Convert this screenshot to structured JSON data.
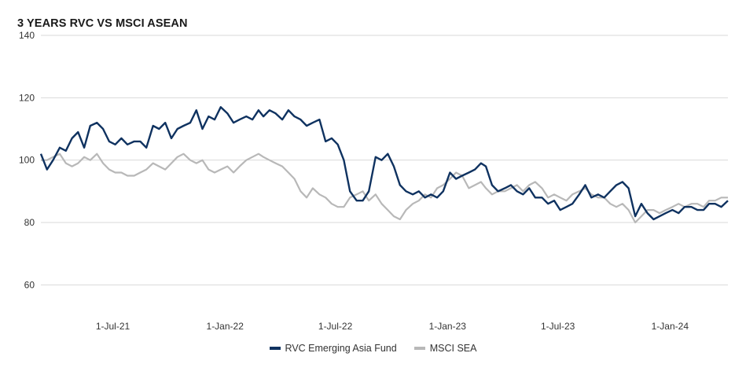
{
  "chart_data": {
    "type": "line",
    "title": "3 YEARS RVC VS MSCI ASEAN",
    "xlabel": "",
    "ylabel": "",
    "ylim": [
      50,
      140
    ],
    "yticks": [
      60,
      80,
      100,
      120,
      140
    ],
    "xlim": [
      "2021-03-05",
      "2024-04-05"
    ],
    "xticks": [
      "2021-07-01",
      "2022-01-01",
      "2022-07-01",
      "2023-01-01",
      "2023-07-01",
      "2024-01-01"
    ],
    "xtick_labels": [
      "1-Jul-21",
      "1-Jan-22",
      "1-Jul-22",
      "1-Jan-23",
      "1-Jul-23",
      "1-Jan-24"
    ],
    "grid": "horizontal",
    "legend_position": "bottom",
    "series": [
      {
        "name": "RVC Emerging Asia Fund",
        "color": "#0f3260",
        "x": [
          "2021-03-05",
          "2021-03-15",
          "2021-03-25",
          "2021-04-05",
          "2021-04-15",
          "2021-04-25",
          "2021-05-05",
          "2021-05-15",
          "2021-05-25",
          "2021-06-05",
          "2021-06-15",
          "2021-06-25",
          "2021-07-05",
          "2021-07-15",
          "2021-07-25",
          "2021-08-05",
          "2021-08-15",
          "2021-08-25",
          "2021-09-05",
          "2021-09-15",
          "2021-09-25",
          "2021-10-05",
          "2021-10-15",
          "2021-10-25",
          "2021-11-05",
          "2021-11-15",
          "2021-11-25",
          "2021-12-05",
          "2021-12-15",
          "2021-12-25",
          "2022-01-05",
          "2022-01-15",
          "2022-01-25",
          "2022-02-05",
          "2022-02-15",
          "2022-02-25",
          "2022-03-05",
          "2022-03-15",
          "2022-03-25",
          "2022-04-05",
          "2022-04-15",
          "2022-04-25",
          "2022-05-05",
          "2022-05-15",
          "2022-05-25",
          "2022-06-05",
          "2022-06-15",
          "2022-06-25",
          "2022-07-05",
          "2022-07-15",
          "2022-07-25",
          "2022-08-05",
          "2022-08-15",
          "2022-08-25",
          "2022-09-05",
          "2022-09-15",
          "2022-09-25",
          "2022-10-05",
          "2022-10-15",
          "2022-10-25",
          "2022-11-05",
          "2022-11-15",
          "2022-11-25",
          "2022-12-05",
          "2022-12-15",
          "2022-12-25",
          "2023-01-05",
          "2023-01-15",
          "2023-01-25",
          "2023-02-05",
          "2023-02-15",
          "2023-02-25",
          "2023-03-05",
          "2023-03-15",
          "2023-03-25",
          "2023-04-05",
          "2023-04-15",
          "2023-04-25",
          "2023-05-05",
          "2023-05-15",
          "2023-05-25",
          "2023-06-05",
          "2023-06-15",
          "2023-06-25",
          "2023-07-05",
          "2023-07-15",
          "2023-07-25",
          "2023-08-05",
          "2023-08-15",
          "2023-08-25",
          "2023-09-05",
          "2023-09-15",
          "2023-09-25",
          "2023-10-05",
          "2023-10-15",
          "2023-10-25",
          "2023-11-05",
          "2023-11-15",
          "2023-11-25",
          "2023-12-05",
          "2023-12-15",
          "2023-12-25",
          "2024-01-05",
          "2024-01-15",
          "2024-01-25",
          "2024-02-05",
          "2024-02-15",
          "2024-02-25",
          "2024-03-05",
          "2024-03-15",
          "2024-03-25",
          "2024-04-05"
        ],
        "values": [
          102,
          97,
          100,
          104,
          103,
          107,
          109,
          104,
          111,
          112,
          110,
          106,
          105,
          107,
          105,
          106,
          106,
          104,
          111,
          110,
          112,
          107,
          110,
          111,
          112,
          116,
          110,
          114,
          113,
          117,
          115,
          112,
          113,
          114,
          113,
          116,
          114,
          116,
          115,
          113,
          116,
          114,
          113,
          111,
          112,
          113,
          106,
          107,
          105,
          100,
          90,
          87,
          87,
          90,
          101,
          100,
          102,
          98,
          92,
          90,
          89,
          90,
          88,
          89,
          88,
          90,
          96,
          94,
          95,
          96,
          97,
          99,
          98,
          92,
          90,
          91,
          92,
          90,
          89,
          91,
          88,
          88,
          86,
          87,
          84,
          85,
          86,
          89,
          92,
          88,
          89,
          88,
          90,
          92,
          93,
          91,
          82,
          86,
          83,
          81,
          82,
          83,
          84,
          83,
          85,
          85,
          84,
          84,
          86,
          86,
          85,
          87
        ]
      },
      {
        "name": "MSCI SEA",
        "color": "#b8b8b8",
        "x": [
          "2021-03-05",
          "2021-03-15",
          "2021-03-25",
          "2021-04-05",
          "2021-04-15",
          "2021-04-25",
          "2021-05-05",
          "2021-05-15",
          "2021-05-25",
          "2021-06-05",
          "2021-06-15",
          "2021-06-25",
          "2021-07-05",
          "2021-07-15",
          "2021-07-25",
          "2021-08-05",
          "2021-08-15",
          "2021-08-25",
          "2021-09-05",
          "2021-09-15",
          "2021-09-25",
          "2021-10-05",
          "2021-10-15",
          "2021-10-25",
          "2021-11-05",
          "2021-11-15",
          "2021-11-25",
          "2021-12-05",
          "2021-12-15",
          "2021-12-25",
          "2022-01-05",
          "2022-01-15",
          "2022-01-25",
          "2022-02-05",
          "2022-02-15",
          "2022-02-25",
          "2022-03-05",
          "2022-03-15",
          "2022-03-25",
          "2022-04-05",
          "2022-04-15",
          "2022-04-25",
          "2022-05-05",
          "2022-05-15",
          "2022-05-25",
          "2022-06-05",
          "2022-06-15",
          "2022-06-25",
          "2022-07-05",
          "2022-07-15",
          "2022-07-25",
          "2022-08-05",
          "2022-08-15",
          "2022-08-25",
          "2022-09-05",
          "2022-09-15",
          "2022-09-25",
          "2022-10-05",
          "2022-10-15",
          "2022-10-25",
          "2022-11-05",
          "2022-11-15",
          "2022-11-25",
          "2022-12-05",
          "2022-12-15",
          "2022-12-25",
          "2023-01-05",
          "2023-01-15",
          "2023-01-25",
          "2023-02-05",
          "2023-02-15",
          "2023-02-25",
          "2023-03-05",
          "2023-03-15",
          "2023-03-25",
          "2023-04-05",
          "2023-04-15",
          "2023-04-25",
          "2023-05-05",
          "2023-05-15",
          "2023-05-25",
          "2023-06-05",
          "2023-06-15",
          "2023-06-25",
          "2023-07-05",
          "2023-07-15",
          "2023-07-25",
          "2023-08-05",
          "2023-08-15",
          "2023-08-25",
          "2023-09-05",
          "2023-09-15",
          "2023-09-25",
          "2023-10-05",
          "2023-10-15",
          "2023-10-25",
          "2023-11-05",
          "2023-11-15",
          "2023-11-25",
          "2023-12-05",
          "2023-12-15",
          "2023-12-25",
          "2024-01-05",
          "2024-01-15",
          "2024-01-25",
          "2024-02-05",
          "2024-02-15",
          "2024-02-25",
          "2024-03-05",
          "2024-03-15",
          "2024-03-25",
          "2024-04-05"
        ],
        "values": [
          100,
          100,
          101,
          102,
          99,
          98,
          99,
          101,
          100,
          102,
          99,
          97,
          96,
          96,
          95,
          95,
          96,
          97,
          99,
          98,
          97,
          99,
          101,
          102,
          100,
          99,
          100,
          97,
          96,
          97,
          98,
          96,
          98,
          100,
          101,
          102,
          101,
          100,
          99,
          98,
          96,
          94,
          90,
          88,
          91,
          89,
          88,
          86,
          85,
          85,
          88,
          89,
          90,
          87,
          89,
          86,
          84,
          82,
          81,
          84,
          86,
          87,
          89,
          88,
          91,
          92,
          94,
          96,
          95,
          91,
          92,
          93,
          91,
          89,
          90,
          90,
          91,
          92,
          90,
          92,
          93,
          91,
          88,
          89,
          88,
          87,
          89,
          90,
          91,
          89,
          88,
          88,
          86,
          85,
          86,
          84,
          80,
          82,
          84,
          84,
          83,
          84,
          85,
          86,
          85,
          86,
          86,
          85,
          87,
          87,
          88,
          88
        ]
      }
    ]
  }
}
